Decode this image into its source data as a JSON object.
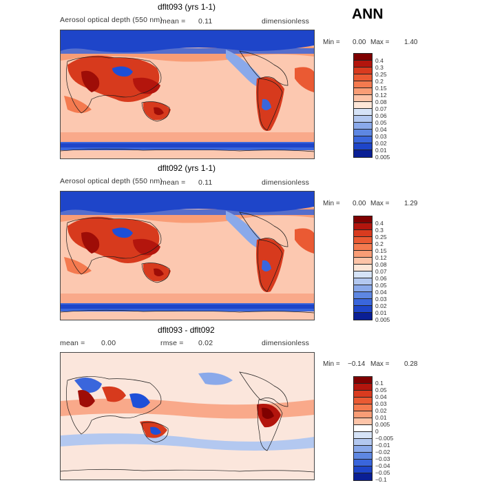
{
  "header": {
    "season": "ANN"
  },
  "colors": {
    "ocean_bg": "#fcc8b0",
    "land_hot": "#d73a1d",
    "land_dark": "#9e0d07",
    "ice": "#1d4fd8",
    "diff_bg": "#fbe6dc"
  },
  "panels": [
    {
      "title": "dflt093 (yrs 1-1)",
      "field": "Aerosol optical depth (550 nm)",
      "mean_label": "mean =",
      "mean_value": "0.11",
      "units": "dimensionless",
      "min_label": "Min =",
      "min_value": "0.00",
      "max_label": "Max =",
      "max_value": "1.40",
      "levels": [
        "0.4",
        "0.3",
        "0.25",
        "0.2",
        "0.15",
        "0.12",
        "0.08",
        "0.07",
        "0.06",
        "0.05",
        "0.04",
        "0.03",
        "0.02",
        "0.01",
        "0.005"
      ],
      "colors": [
        "#7f0000",
        "#b3150d",
        "#d93b1f",
        "#ea5a33",
        "#f47a4f",
        "#f99d76",
        "#fdc4a8",
        "#fde6d7",
        "#d6e3f7",
        "#b3c8f0",
        "#8aa9ea",
        "#5e87e2",
        "#3a66dc",
        "#1e45c9",
        "#0a1f95"
      ]
    },
    {
      "title": "dflt092 (yrs 1-1)",
      "field": "Aerosol optical depth (550 nm)",
      "mean_label": "mean =",
      "mean_value": "0.11",
      "units": "dimensionless",
      "min_label": "Min =",
      "min_value": "0.00",
      "max_label": "Max =",
      "max_value": "1.29",
      "levels": [
        "0.4",
        "0.3",
        "0.25",
        "0.2",
        "0.15",
        "0.12",
        "0.08",
        "0.07",
        "0.06",
        "0.05",
        "0.04",
        "0.03",
        "0.02",
        "0.01",
        "0.005"
      ],
      "colors": [
        "#7f0000",
        "#b3150d",
        "#d93b1f",
        "#ea5a33",
        "#f47a4f",
        "#f99d76",
        "#fdc4a8",
        "#fde6d7",
        "#d6e3f7",
        "#b3c8f0",
        "#8aa9ea",
        "#5e87e2",
        "#3a66dc",
        "#1e45c9",
        "#0a1f95"
      ]
    },
    {
      "title": "dflt093 - dflt092",
      "mean_label": "mean =",
      "mean_value": "0.00",
      "rmse_label": "rmse =",
      "rmse_value": "0.02",
      "units": "dimensionless",
      "min_label": "Min =",
      "min_value": "−0.14",
      "max_label": "Max =",
      "max_value": "0.28",
      "levels": [
        "0.1",
        "0.05",
        "0.04",
        "0.03",
        "0.02",
        "0.01",
        "0.005",
        "0",
        "−0.005",
        "−0.01",
        "−0.02",
        "−0.03",
        "−0.04",
        "−0.05",
        "−0.1"
      ],
      "colors": [
        "#7f0000",
        "#b3150d",
        "#d93b1f",
        "#ea5a33",
        "#f47a4f",
        "#f99d76",
        "#fdc4a8",
        "#ffffff",
        "#d6e3f7",
        "#b3c8f0",
        "#8aa9ea",
        "#5e87e2",
        "#3a66dc",
        "#1e45c9",
        "#0a1f95"
      ]
    }
  ]
}
